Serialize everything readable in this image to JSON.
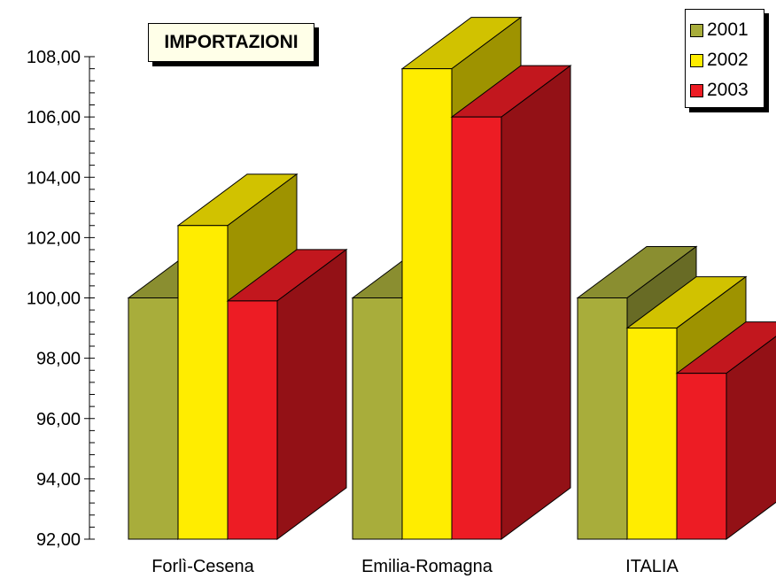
{
  "chart_data": {
    "type": "bar",
    "title": "IMPORTAZIONI",
    "categories": [
      "Forlì-Cesena",
      "Emilia-Romagna",
      "ITALIA"
    ],
    "series": [
      {
        "name": "2001",
        "values": [
          100.0,
          100.0,
          100.0
        ],
        "color": "#a8ad3b"
      },
      {
        "name": "2002",
        "values": [
          102.4,
          107.6,
          99.0
        ],
        "color": "#ffed00"
      },
      {
        "name": "2003",
        "values": [
          99.9,
          106.0,
          97.5
        ],
        "color": "#ed1c24"
      }
    ],
    "ylim": [
      92,
      108
    ],
    "yticks": [
      "92,00",
      "94,00",
      "96,00",
      "98,00",
      "100,00",
      "102,00",
      "104,00",
      "106,00",
      "108,00"
    ],
    "legend_position": "top-right",
    "grid": false
  }
}
